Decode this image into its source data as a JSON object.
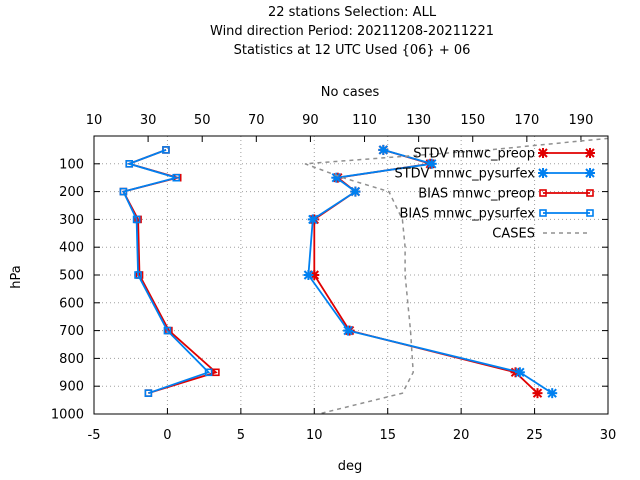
{
  "chart_data": {
    "type": "line",
    "title_lines": [
      "22 stations Selection: ALL",
      "Wind direction  Period: 20211208-20211221",
      "Statistics at 12 UTC  Used {06} + 06"
    ],
    "xlabel": "deg",
    "ylabel": "hPa",
    "x2label": "No cases",
    "xlim": [
      -5,
      30
    ],
    "x_ticks": [
      -5,
      0,
      5,
      10,
      15,
      20,
      25,
      30
    ],
    "ylim": [
      1000,
      0
    ],
    "y_ticks": [
      100,
      200,
      300,
      400,
      500,
      600,
      700,
      800,
      900,
      1000
    ],
    "x2lim": [
      10,
      200
    ],
    "x2_ticks": [
      10,
      30,
      50,
      70,
      90,
      110,
      130,
      150,
      170,
      190
    ],
    "grid": true,
    "legend_position": "top-right",
    "series": [
      {
        "name": "STDV mnwc_preop",
        "color": "#e00000",
        "marker": "x",
        "axis": "x",
        "x": [
          14.7,
          17.9,
          11.6,
          12.8,
          10.0,
          10.0,
          12.4,
          23.7,
          25.2
        ],
        "y": [
          50,
          100,
          150,
          200,
          300,
          500,
          700,
          850,
          925
        ]
      },
      {
        "name": "STDV mnwc_pysurfex",
        "color": "#0080f0",
        "marker": "x",
        "axis": "x",
        "x": [
          14.7,
          18.0,
          11.5,
          12.8,
          9.9,
          9.6,
          12.3,
          24.0,
          26.2
        ],
        "y": [
          50,
          100,
          150,
          200,
          300,
          500,
          700,
          850,
          925
        ]
      },
      {
        "name": "BIAS mnwc_preop",
        "color": "#e00000",
        "marker": "square",
        "axis": "x",
        "x": [
          -0.1,
          -2.6,
          0.7,
          -3.0,
          -2.0,
          -1.9,
          0.1,
          3.3,
          -1.3
        ],
        "y": [
          50,
          100,
          150,
          200,
          300,
          500,
          700,
          850,
          925
        ]
      },
      {
        "name": "BIAS mnwc_pysurfex",
        "color": "#0080f0",
        "marker": "square",
        "axis": "x",
        "x": [
          -0.1,
          -2.6,
          0.6,
          -3.0,
          -2.1,
          -2.0,
          0.0,
          2.8,
          -1.3
        ],
        "y": [
          50,
          100,
          150,
          200,
          300,
          500,
          700,
          850,
          925
        ]
      },
      {
        "name": "CASES",
        "color": "#909090",
        "marker": "none",
        "dashed": true,
        "axis": "x2",
        "x": [
          209,
          156,
          88,
          102,
          119,
          124,
          125,
          125,
          127,
          128,
          124,
          93
        ],
        "y": [
          0,
          50,
          100,
          150,
          200,
          300,
          400,
          500,
          700,
          850,
          925,
          1000
        ]
      }
    ]
  }
}
